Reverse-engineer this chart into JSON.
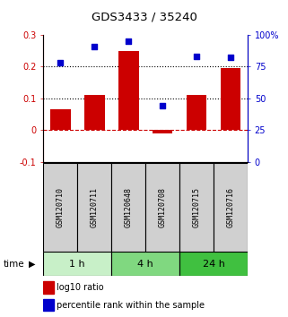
{
  "title": "GDS3433 / 35240",
  "samples": [
    "GSM120710",
    "GSM120711",
    "GSM120648",
    "GSM120708",
    "GSM120715",
    "GSM120716"
  ],
  "log10_ratio": [
    0.065,
    0.11,
    0.25,
    -0.01,
    0.11,
    0.195
  ],
  "percentile_rank": [
    78,
    91,
    95,
    44,
    83,
    82
  ],
  "bar_color": "#cc0000",
  "scatter_color": "#0000cc",
  "ylim_left": [
    -0.1,
    0.3
  ],
  "ylim_right": [
    0,
    100
  ],
  "yticks_left": [
    -0.1,
    0.0,
    0.1,
    0.2,
    0.3
  ],
  "ytick_labels_left": [
    "-0.1",
    "0",
    "0.1",
    "0.2",
    "0.3"
  ],
  "yticks_right": [
    0,
    25,
    50,
    75,
    100
  ],
  "ytick_labels_right": [
    "0",
    "25",
    "50",
    "75",
    "100%"
  ],
  "hlines_dotted": [
    0.1,
    0.2
  ],
  "hline_dashed": 0.0,
  "time_groups": [
    {
      "label": "1 h",
      "indices": [
        0,
        1
      ],
      "color": "#c8f0c8"
    },
    {
      "label": "4 h",
      "indices": [
        2,
        3
      ],
      "color": "#80d880"
    },
    {
      "label": "24 h",
      "indices": [
        4,
        5
      ],
      "color": "#40c040"
    }
  ],
  "time_label": "time",
  "legend_bar_label": "log10 ratio",
  "legend_scatter_label": "percentile rank within the sample",
  "sample_box_color": "#d0d0d0",
  "sample_box_border": "#000000"
}
